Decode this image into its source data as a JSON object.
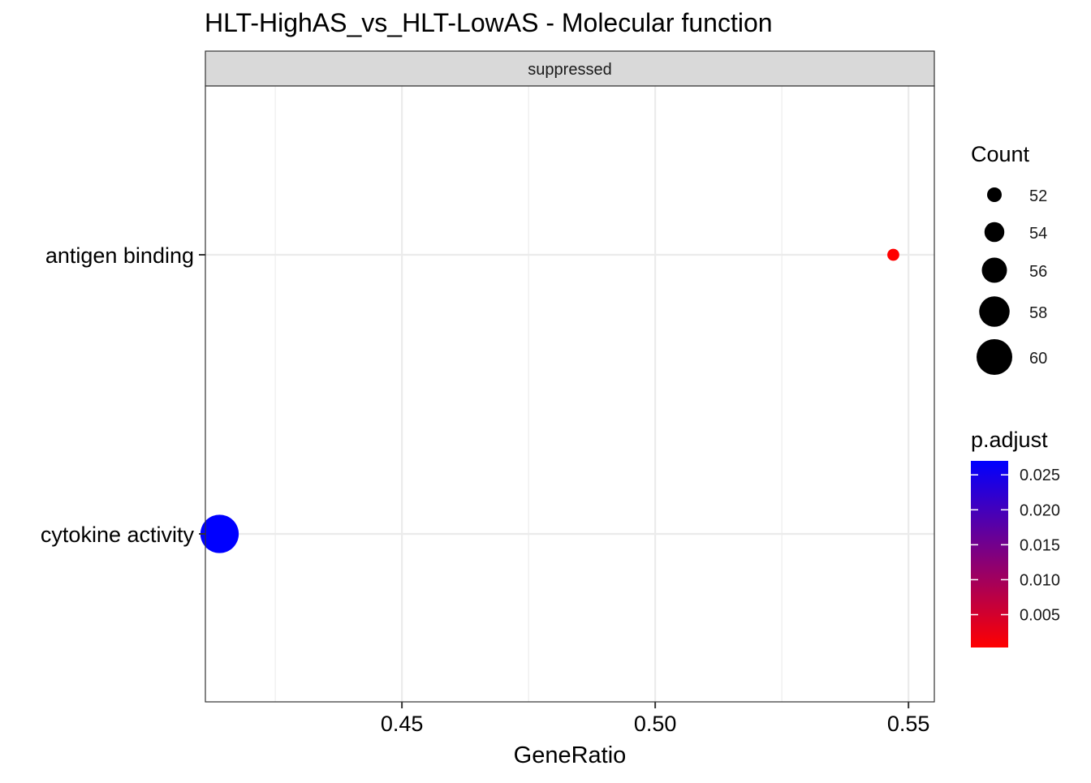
{
  "chart_data": {
    "type": "scatter",
    "title": "HLT-HighAS_vs_HLT-LowAS - Molecular function",
    "facet_label": "suppressed",
    "xlabel": "GeneRatio",
    "ylabel": "",
    "x_ticks": [
      "0.45",
      "0.50",
      "0.55"
    ],
    "x_tick_values": [
      0.45,
      0.5,
      0.55
    ],
    "xlim": [
      0.4112,
      0.5551
    ],
    "y_categories": [
      "antigen binding",
      "cytokine activity"
    ],
    "points": [
      {
        "category": "antigen binding",
        "x": 0.547,
        "count": 51,
        "p_adjust": 0.0003
      },
      {
        "category": "cytokine activity",
        "x": 0.414,
        "count": 61,
        "p_adjust": 0.027
      }
    ],
    "grid": true,
    "legend_position": "right",
    "count_legend": {
      "title": "Count",
      "labels": [
        "52",
        "54",
        "56",
        "58",
        "60"
      ],
      "values": [
        52,
        54,
        56,
        58,
        60
      ]
    },
    "color_legend": {
      "title": "p.adjust",
      "labels": [
        "0.025",
        "0.020",
        "0.015",
        "0.010",
        "0.005"
      ],
      "values": [
        0.025,
        0.02,
        0.015,
        0.01,
        0.005
      ],
      "range": [
        0.0003,
        0.027
      ],
      "low_color": "#ff0000",
      "high_color": "#0000ff"
    }
  }
}
